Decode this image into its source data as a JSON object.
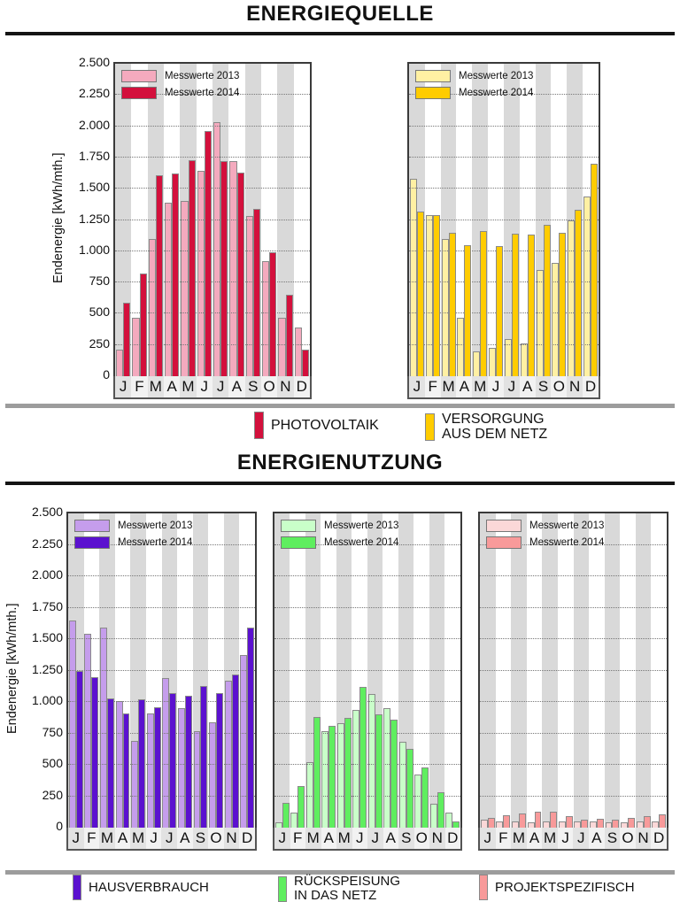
{
  "page": {
    "section1_title": "ENERGIEQUELLE",
    "section2_title": "ENERGIENUTZUNG"
  },
  "y_axis": {
    "label": "Endenergie [kWh/mth.]",
    "max": 2500,
    "step": 250,
    "tick_labels": [
      "2.500",
      "2.250",
      "2.000",
      "1.750",
      "1.500",
      "1.250",
      "1.000",
      "750",
      "500",
      "250",
      "0"
    ]
  },
  "months": [
    "J",
    "F",
    "M",
    "A",
    "M",
    "J",
    "J",
    "A",
    "S",
    "O",
    "N",
    "D"
  ],
  "series_legend": [
    "Messwerte 2013",
    "Messwerte 2014"
  ],
  "chart_data": [
    {
      "id": "photovoltaik",
      "type": "bar",
      "title": "PHOTOVOLTAIK",
      "ylabel": "Endenergie [kWh/mth.]",
      "categories": [
        "J",
        "F",
        "M",
        "A",
        "M",
        "J",
        "J",
        "A",
        "S",
        "O",
        "N",
        "D"
      ],
      "ylim": [
        0,
        2500
      ],
      "grid": true,
      "legend_position": "top-left",
      "series": [
        {
          "name": "Messwerte 2013",
          "color": "#F4AABE",
          "values": [
            210,
            470,
            1100,
            1390,
            1400,
            1640,
            2030,
            1720,
            1280,
            920,
            470,
            390
          ]
        },
        {
          "name": "Messwerte 2014",
          "color": "#D3103C",
          "values": [
            590,
            820,
            1610,
            1620,
            1730,
            1960,
            1720,
            1630,
            1340,
            990,
            650,
            210
          ]
        }
      ]
    },
    {
      "id": "versorgung-netz",
      "type": "bar",
      "title": "VERSORGUNG AUS DEM NETZ",
      "ylabel": "Endenergie [kWh/mth.]",
      "categories": [
        "J",
        "F",
        "M",
        "A",
        "M",
        "J",
        "J",
        "A",
        "S",
        "O",
        "N",
        "D"
      ],
      "ylim": [
        0,
        2500
      ],
      "grid": true,
      "legend_position": "top-left",
      "series": [
        {
          "name": "Messwerte 2013",
          "color": "#FFF0A3",
          "values": [
            1580,
            1290,
            1100,
            470,
            200,
            230,
            300,
            260,
            850,
            910,
            1250,
            1440
          ]
        },
        {
          "name": "Messwerte 2014",
          "color": "#FFCC00",
          "values": [
            1320,
            1290,
            1150,
            1050,
            1160,
            1040,
            1140,
            1130,
            1210,
            1150,
            1330,
            1700
          ]
        }
      ]
    },
    {
      "id": "hausverbrauch",
      "type": "bar",
      "title": "HAUSVERBRAUCH",
      "ylabel": "Endenergie [kWh/mth.]",
      "categories": [
        "J",
        "F",
        "M",
        "A",
        "M",
        "J",
        "J",
        "A",
        "S",
        "O",
        "N",
        "D"
      ],
      "ylim": [
        0,
        2500
      ],
      "grid": true,
      "legend_position": "top-left",
      "series": [
        {
          "name": "Messwerte 2013",
          "color": "#C59DEC",
          "values": [
            1650,
            1540,
            1590,
            1010,
            690,
            910,
            1190,
            950,
            770,
            840,
            1170,
            1370
          ]
        },
        {
          "name": "Messwerte 2014",
          "color": "#5B11CF",
          "values": [
            1250,
            1200,
            1030,
            910,
            1020,
            960,
            1070,
            1050,
            1130,
            1070,
            1220,
            1590
          ]
        }
      ]
    },
    {
      "id": "rueckspeisung",
      "type": "bar",
      "title": "RÜCKSPEISUNG IN DAS NETZ",
      "ylabel": "Endenergie [kWh/mth.]",
      "categories": [
        "J",
        "F",
        "M",
        "A",
        "M",
        "J",
        "J",
        "A",
        "S",
        "O",
        "N",
        "D"
      ],
      "ylim": [
        0,
        2500
      ],
      "grid": true,
      "legend_position": "top-left",
      "series": [
        {
          "name": "Messwerte 2013",
          "color": "#C9FFC9",
          "values": [
            40,
            120,
            520,
            770,
            830,
            940,
            1060,
            950,
            680,
            420,
            190,
            120
          ]
        },
        {
          "name": "Messwerte 2014",
          "color": "#5FEE5F",
          "values": [
            200,
            330,
            880,
            810,
            870,
            1120,
            900,
            860,
            630,
            480,
            280,
            50
          ]
        }
      ]
    },
    {
      "id": "projektspezifisch",
      "type": "bar",
      "title": "PROJEKTSPEZIFISCH",
      "ylabel": "Endenergie [kWh/mth.]",
      "categories": [
        "J",
        "F",
        "M",
        "A",
        "M",
        "J",
        "J",
        "A",
        "S",
        "O",
        "N",
        "D"
      ],
      "ylim": [
        0,
        2500
      ],
      "grid": true,
      "legend_position": "top-left",
      "series": [
        {
          "name": "Messwerte 2013",
          "color": "#FBD8D8",
          "values": [
            60,
            50,
            50,
            45,
            50,
            50,
            50,
            50,
            45,
            45,
            50,
            50
          ]
        },
        {
          "name": "Messwerte 2014",
          "color": "#F89A9A",
          "values": [
            80,
            100,
            110,
            130,
            130,
            90,
            65,
            70,
            65,
            75,
            95,
            105
          ]
        }
      ]
    }
  ],
  "source_legend": [
    {
      "label_lines": [
        "PHOTOVOLTAIK"
      ],
      "color": "#D3103C"
    },
    {
      "label_lines": [
        "VERSORGUNG",
        "AUS DEM NETZ"
      ],
      "color": "#FFCC00"
    }
  ],
  "usage_legend": [
    {
      "label_lines": [
        "HAUSVERBRAUCH"
      ],
      "color": "#5B11CF"
    },
    {
      "label_lines": [
        "RÜCKSPEISUNG",
        "IN DAS NETZ"
      ],
      "color": "#5FEE5F"
    },
    {
      "label_lines": [
        "PROJEKTSPEZIFISCH"
      ],
      "color": "#F89A9A"
    }
  ]
}
